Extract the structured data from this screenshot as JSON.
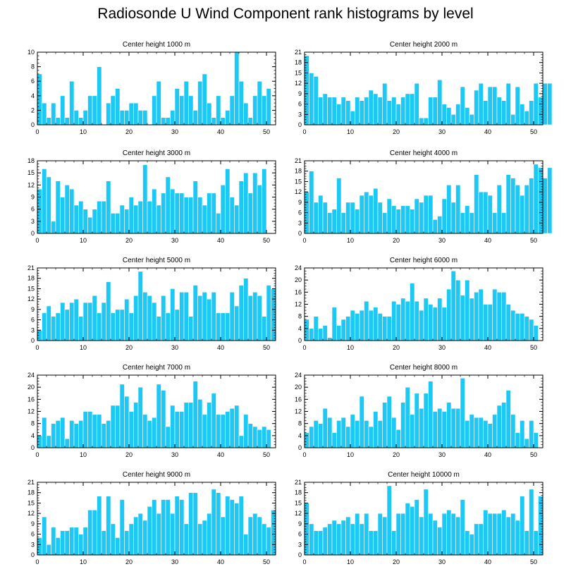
{
  "title": "Radiosonde U Wind Component rank histograms by level",
  "colors": {
    "bar": "#1ec8f5",
    "bar_edge": "#ffffff",
    "axis": "#000000"
  },
  "chart_data": [
    {
      "type": "bar",
      "title": "Center height 1000 m",
      "xlim": [
        0,
        52
      ],
      "xticks": [
        0,
        10,
        20,
        30,
        40,
        50
      ],
      "ylim": [
        0,
        10
      ],
      "yticks": [
        0,
        2,
        4,
        6,
        8,
        10
      ],
      "values": [
        7,
        3,
        1,
        3,
        1,
        4,
        1,
        6,
        2,
        1,
        2,
        4,
        4,
        8,
        0,
        3,
        4,
        5,
        2,
        2,
        3,
        3,
        2,
        2,
        0,
        4,
        6,
        1,
        1,
        2,
        5,
        4,
        6,
        4,
        2,
        6,
        7,
        3,
        1,
        4,
        1,
        2,
        4,
        10,
        6,
        3,
        1,
        4,
        6,
        4,
        5
      ]
    },
    {
      "type": "bar",
      "title": "Center height 2000 m",
      "xlim": [
        0,
        52
      ],
      "xticks": [
        0,
        10,
        20,
        30,
        40,
        50
      ],
      "ylim": [
        0,
        21
      ],
      "yticks": [
        0,
        3,
        6,
        9,
        12,
        15,
        18,
        21
      ],
      "values": [
        20,
        15,
        14,
        8,
        9,
        8,
        8,
        6,
        8,
        7,
        4,
        8,
        7,
        8,
        10,
        9,
        8,
        12,
        7,
        8,
        6,
        8,
        9,
        9,
        12,
        2,
        2,
        8,
        8,
        13,
        6,
        5,
        3,
        6,
        11,
        5,
        3,
        10,
        12,
        7,
        11,
        11,
        8,
        7,
        12,
        3,
        11,
        6,
        4,
        7,
        12,
        8,
        12,
        12
      ]
    },
    {
      "type": "bar",
      "title": "Center height 3000 m",
      "xlim": [
        0,
        52
      ],
      "xticks": [
        0,
        10,
        20,
        30,
        40,
        50
      ],
      "ylim": [
        0,
        18
      ],
      "yticks": [
        0,
        3,
        6,
        9,
        12,
        15,
        18
      ],
      "values": [
        11,
        16,
        14,
        3,
        13,
        9,
        12,
        11,
        7,
        8,
        6,
        4,
        6,
        8,
        8,
        13,
        5,
        5,
        7,
        6,
        9,
        7,
        8,
        17,
        8,
        11,
        7,
        10,
        14,
        11,
        10,
        10,
        9,
        9,
        13,
        9,
        7,
        10,
        10,
        5,
        12,
        16,
        9,
        7,
        13,
        15,
        10,
        15,
        12,
        16
      ]
    },
    {
      "type": "bar",
      "title": "Center height 4000 m",
      "xlim": [
        0,
        52
      ],
      "xticks": [
        0,
        10,
        20,
        30,
        40,
        50
      ],
      "ylim": [
        0,
        21
      ],
      "yticks": [
        0,
        3,
        6,
        9,
        12,
        15,
        18,
        21
      ],
      "values": [
        12,
        18,
        9,
        11,
        9,
        6,
        7,
        16,
        6,
        9,
        9,
        7,
        11,
        12,
        11,
        13,
        9,
        6,
        10,
        8,
        7,
        8,
        8,
        7,
        10,
        9,
        11,
        11,
        4,
        5,
        10,
        14,
        9,
        14,
        6,
        8,
        6,
        17,
        12,
        12,
        11,
        6,
        14,
        6,
        17,
        16,
        14,
        11,
        14,
        16,
        20,
        19,
        16,
        19
      ]
    },
    {
      "type": "bar",
      "title": "Center height 5000 m",
      "xlim": [
        0,
        52
      ],
      "xticks": [
        0,
        10,
        20,
        30,
        40,
        50
      ],
      "ylim": [
        0,
        21
      ],
      "yticks": [
        0,
        3,
        6,
        9,
        12,
        15,
        18,
        21
      ],
      "values": [
        3,
        8,
        10,
        7,
        8,
        11,
        9,
        11,
        12,
        7,
        11,
        11,
        13,
        8,
        11,
        17,
        8,
        9,
        9,
        12,
        8,
        13,
        20,
        14,
        13,
        11,
        7,
        13,
        8,
        15,
        9,
        14,
        14,
        7,
        16,
        13,
        14,
        12,
        14,
        8,
        8,
        8,
        14,
        10,
        16,
        18,
        13,
        14,
        13,
        7,
        16,
        15
      ]
    },
    {
      "type": "bar",
      "title": "Center height 6000 m",
      "xlim": [
        0,
        52
      ],
      "xticks": [
        0,
        10,
        20,
        30,
        40,
        50
      ],
      "ylim": [
        0,
        24
      ],
      "yticks": [
        0,
        4,
        8,
        12,
        16,
        20,
        24
      ],
      "values": [
        7,
        4,
        8,
        4,
        5,
        1,
        11,
        5,
        7,
        8,
        10,
        9,
        10,
        13,
        10,
        11,
        9,
        8,
        8,
        13,
        12,
        14,
        13,
        19,
        13,
        10,
        14,
        12,
        11,
        14,
        11,
        17,
        23,
        20,
        15,
        20,
        14,
        16,
        17,
        12,
        12,
        17,
        16,
        16,
        12,
        10,
        9,
        9,
        8,
        7,
        5
      ]
    },
    {
      "type": "bar",
      "title": "Center height 7000 m",
      "xlim": [
        0,
        52
      ],
      "xticks": [
        0,
        10,
        20,
        30,
        40,
        50
      ],
      "ylim": [
        0,
        24
      ],
      "yticks": [
        0,
        4,
        8,
        12,
        16,
        20,
        24
      ],
      "values": [
        4,
        10,
        4,
        8,
        9,
        10,
        3,
        9,
        8,
        9,
        12,
        12,
        11,
        11,
        8,
        9,
        14,
        14,
        21,
        17,
        12,
        15,
        20,
        11,
        9,
        10,
        21,
        19,
        7,
        14,
        12,
        12,
        15,
        15,
        22,
        16,
        11,
        15,
        18,
        11,
        11,
        12,
        13,
        14,
        4,
        11,
        8,
        7,
        6,
        7,
        6
      ]
    },
    {
      "type": "bar",
      "title": "Center height 8000 m",
      "xlim": [
        0,
        52
      ],
      "xticks": [
        0,
        10,
        20,
        30,
        40,
        50
      ],
      "ylim": [
        0,
        24
      ],
      "yticks": [
        0,
        4,
        8,
        12,
        16,
        20,
        24
      ],
      "values": [
        5,
        7,
        9,
        8,
        13,
        10,
        5,
        9,
        10,
        7,
        11,
        9,
        17,
        9,
        7,
        12,
        9,
        15,
        17,
        10,
        6,
        15,
        20,
        11,
        18,
        13,
        18,
        22,
        12,
        13,
        12,
        15,
        13,
        13,
        23,
        9,
        11,
        10,
        10,
        9,
        8,
        11,
        14,
        15,
        19,
        11,
        5,
        9,
        3,
        9,
        5
      ]
    },
    {
      "type": "bar",
      "title": "Center height 9000 m",
      "xlim": [
        0,
        52
      ],
      "xticks": [
        0,
        10,
        20,
        30,
        40,
        50
      ],
      "ylim": [
        0,
        21
      ],
      "yticks": [
        0,
        3,
        6,
        9,
        12,
        15,
        18,
        21
      ],
      "values": [
        5,
        11,
        3,
        8,
        5,
        7,
        7,
        8,
        8,
        6,
        8,
        13,
        13,
        17,
        7,
        17,
        9,
        5,
        16,
        7,
        9,
        11,
        12,
        10,
        14,
        16,
        12,
        16,
        16,
        12,
        17,
        16,
        9,
        18,
        18,
        9,
        10,
        12,
        19,
        18,
        11,
        17,
        16,
        15,
        17,
        6,
        11,
        12,
        11,
        9,
        8,
        13
      ]
    },
    {
      "type": "bar",
      "title": "Center height 10000 m",
      "xlim": [
        0,
        52
      ],
      "xticks": [
        0,
        10,
        20,
        30,
        40,
        50
      ],
      "ylim": [
        0,
        21
      ],
      "yticks": [
        0,
        3,
        6,
        9,
        12,
        15,
        18,
        21
      ],
      "values": [
        15,
        9,
        7,
        7,
        8,
        9,
        10,
        9,
        10,
        11,
        9,
        12,
        9,
        12,
        7,
        7,
        12,
        11,
        20,
        7,
        12,
        12,
        15,
        14,
        16,
        11,
        19,
        12,
        10,
        8,
        12,
        13,
        12,
        11,
        16,
        7,
        6,
        9,
        9,
        13,
        12,
        12,
        12,
        13,
        11,
        12,
        10,
        17,
        7,
        19,
        7,
        17
      ]
    }
  ]
}
